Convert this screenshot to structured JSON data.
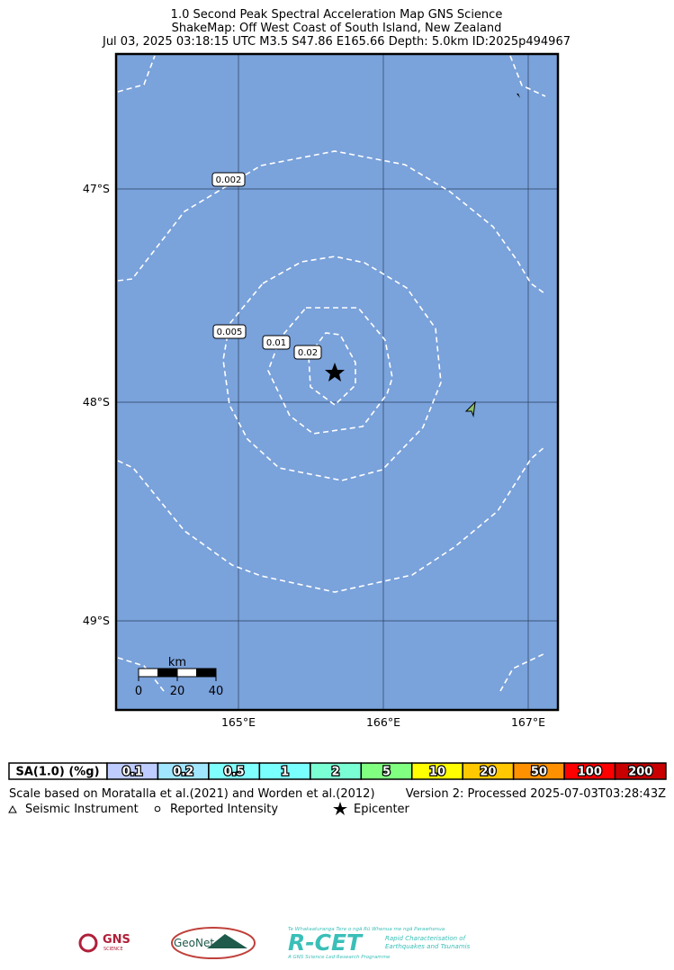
{
  "header": {
    "title": "1.0 Second Peak Spectral Acceleration Map GNS Science",
    "subtitle": "ShakeMap: Off West Coast of South Island, New Zealand",
    "event": "Jul 03, 2025 03:18:15 UTC M3.5 S47.86 E165.66 Depth: 5.0km ID:2025p494967"
  },
  "map": {
    "lat_labels": [
      "47°S",
      "48°S",
      "49°S"
    ],
    "lon_labels": [
      "165°E",
      "166°E",
      "167°E"
    ],
    "contour_labels": [
      "0.002",
      "0.005",
      "0.01",
      "0.02"
    ],
    "scale_bar": {
      "unit": "km",
      "ticks": [
        "0",
        "20",
        "40"
      ]
    }
  },
  "legend": {
    "title": "SA(1.0) (%g)",
    "bins": [
      "0.1",
      "0.2",
      "0.5",
      "1",
      "2",
      "5",
      "10",
      "20",
      "50",
      "100",
      "200"
    ],
    "colors": [
      "#bfccff",
      "#a0e6ff",
      "#80ffff",
      "#7affff",
      "#7affd4",
      "#80ff80",
      "#ffff00",
      "#ffc800",
      "#ff9100",
      "#ff0000",
      "#c80000"
    ],
    "note": "Scale based on Moratalla et al.(2021) and Worden et al.(2012)",
    "version": "Version 2: Processed 2025-07-03T03:28:43Z",
    "symbols": [
      "Seismic Instrument",
      "Reported Intensity",
      "Epicenter"
    ]
  },
  "logos": {
    "gns": "GNS",
    "gns_sub": "SCIENCE",
    "geonet": "GeoNet",
    "rcet": "R-CET",
    "rcet_maori": "Te Whakaaturanga Tere o ngā Rū Whenua me ngā Parawhenua",
    "rcet_line1": "Rapid Characterisation of",
    "rcet_line2": "Earthquakes and Tsunamis",
    "rcet_foot": "A GNS Science Led Research Programme"
  }
}
